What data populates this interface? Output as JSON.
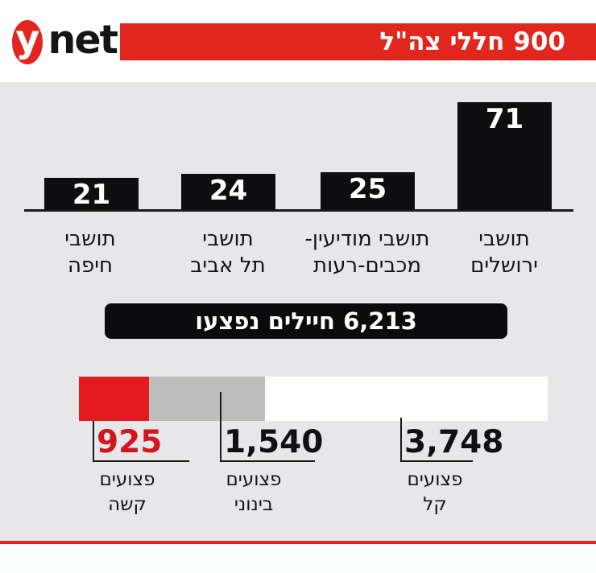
{
  "brand": {
    "logo_y": "y",
    "logo_net": "net",
    "brand_red": "#e2261d"
  },
  "header": {
    "banner_title": "900 חללי צה\"ל"
  },
  "colors": {
    "panel_background": "#e7e7e9",
    "bar_black": "#0e0e10",
    "banner_red": "#e2261d",
    "bottom_line_red": "#e0251c",
    "severe_red": "#e31b1e",
    "moderate_gray": "#bdbdbe",
    "light_white": "#ffffff",
    "severe_number_red": "#d4161c"
  },
  "chart_data": [
    {
      "type": "bar",
      "title": "900 חללי צה\"ל",
      "categories": [
        "תושבי חיפה",
        "תושבי תל אביב",
        "תושבי מודיעין-מכבים-רעות",
        "תושבי ירושלים"
      ],
      "values": [
        21,
        24,
        25,
        71
      ],
      "ylim": [
        0,
        71
      ],
      "bar_color": "#0e0e10",
      "value_label_color": "#ffffff",
      "grid": false,
      "direction": "rtl",
      "labels": [
        {
          "line1": "תושבי",
          "line2": "חיפה"
        },
        {
          "line1": "תושבי",
          "line2": "תל אביב"
        },
        {
          "line1": "תושבי מודיעין-",
          "line2": "מכבים-רעות"
        },
        {
          "line1": "תושבי",
          "line2": "ירושלים"
        }
      ]
    },
    {
      "type": "stacked-bar",
      "title": "6,213 חיילים נפצעו",
      "total": 6213,
      "segments": [
        {
          "value": 925,
          "display": "925",
          "label_line1": "פצועים",
          "label_line2": "קשה",
          "color": "#e31b1e",
          "number_color": "#d4161c"
        },
        {
          "value": 1540,
          "display": "1,540",
          "label_line1": "פצועים",
          "label_line2": "בינוני",
          "color": "#bdbdbe",
          "number_color": "#111114"
        },
        {
          "value": 3748,
          "display": "3,748",
          "label_line1": "פצועים",
          "label_line2": "קל",
          "color": "#ffffff",
          "number_color": "#111114"
        }
      ]
    }
  ]
}
